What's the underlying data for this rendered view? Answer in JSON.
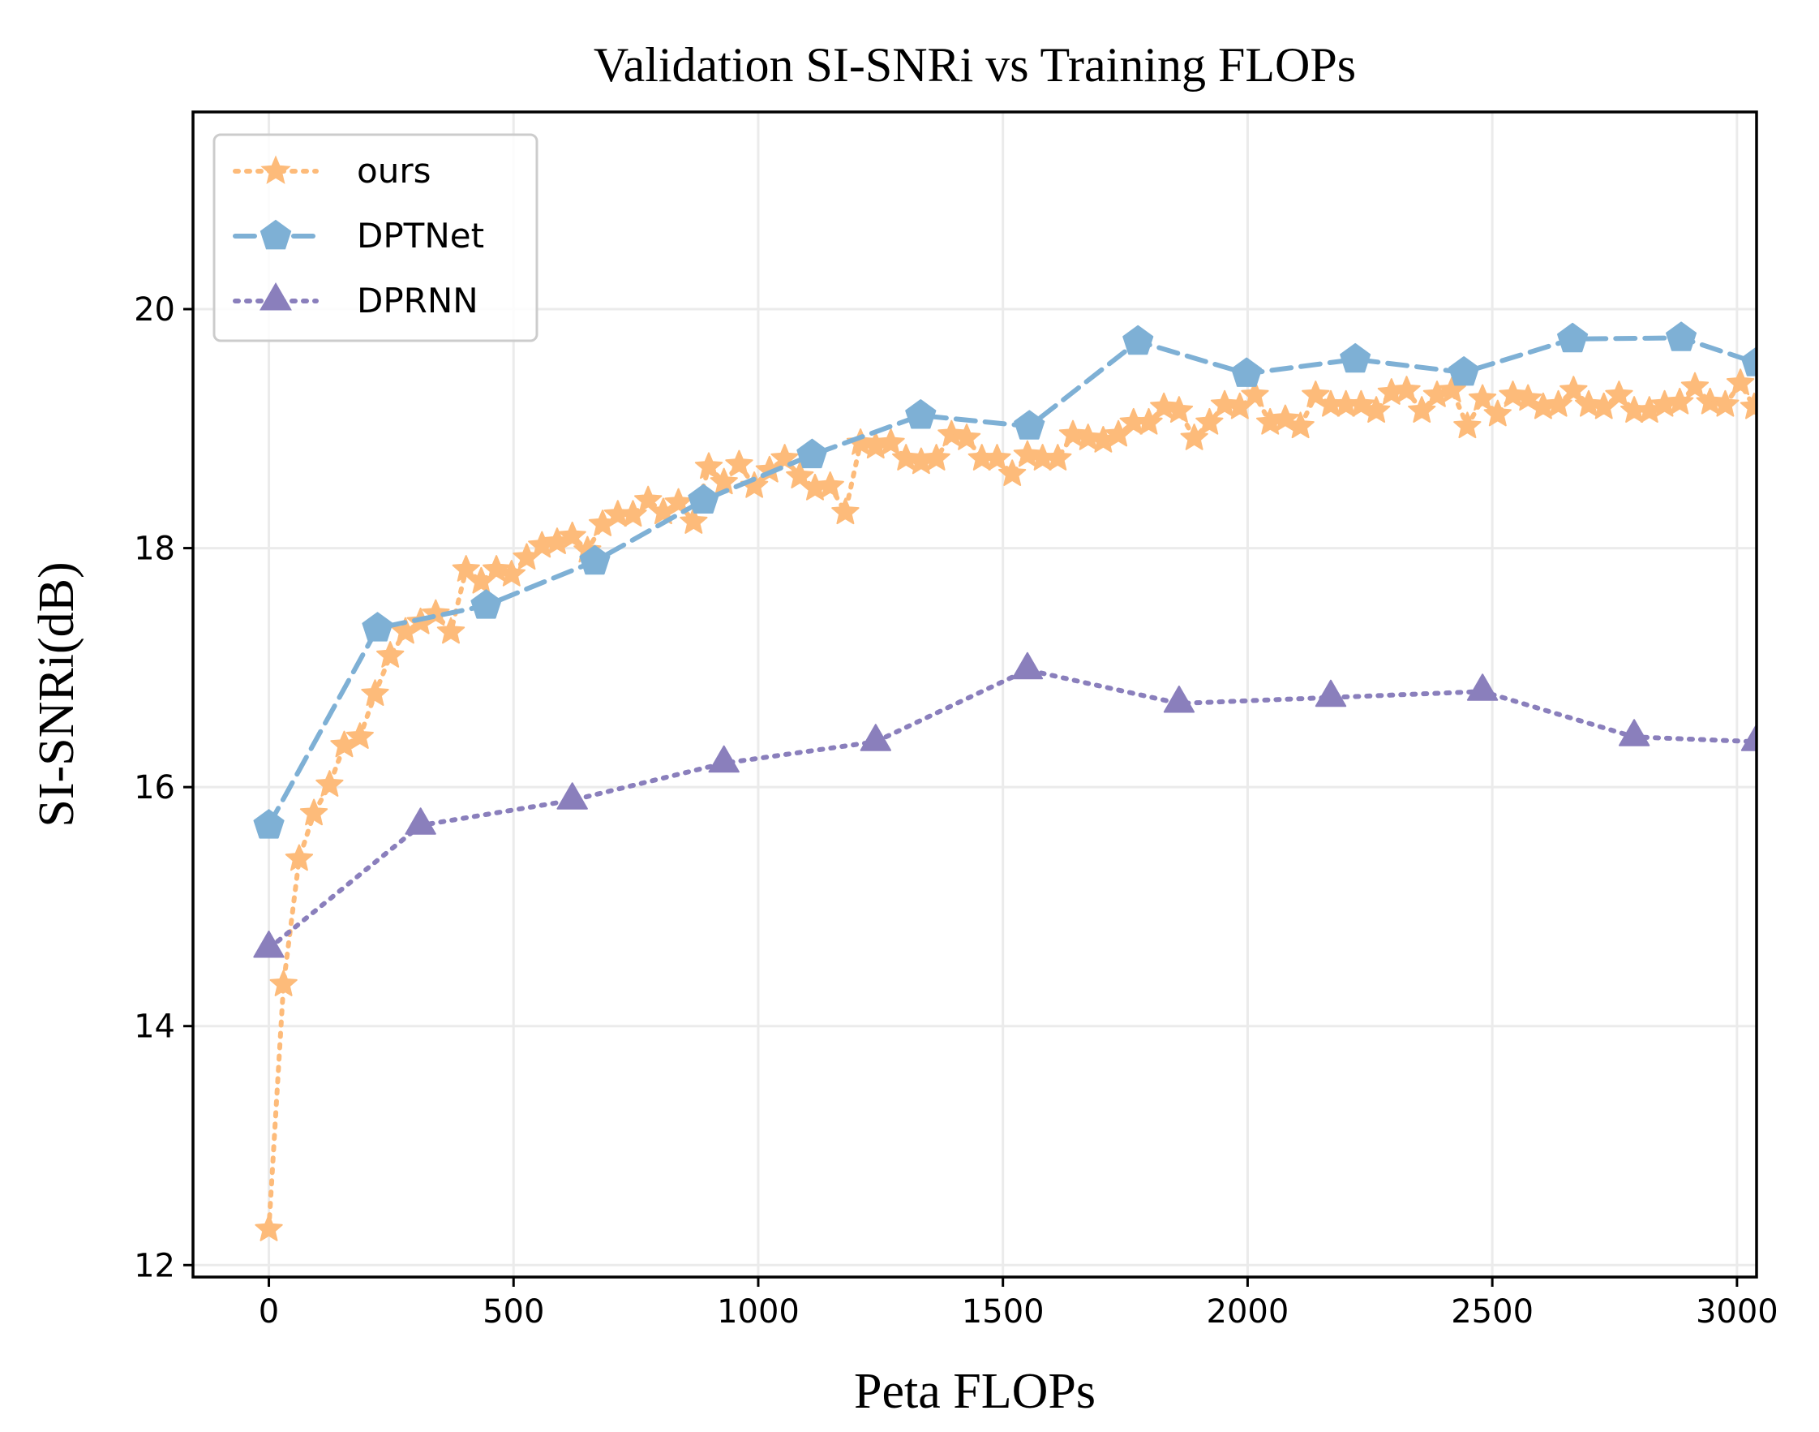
{
  "chart_data": {
    "type": "line",
    "title": "Validation SI-SNRi vs Training FLOPs",
    "xlabel": "Peta FLOPs",
    "ylabel": "SI-SNRi(dB)",
    "xlim": [
      -155,
      3040
    ],
    "ylim": [
      11.9,
      21.65
    ],
    "xticks": [
      0,
      500,
      1000,
      1500,
      2000,
      2500,
      3000
    ],
    "xtick_labels": [
      "0",
      "500",
      "1000",
      "1500",
      "2000",
      "2500",
      "3000"
    ],
    "yticks": [
      12,
      14,
      16,
      18,
      20
    ],
    "ytick_labels": [
      "12",
      "14",
      "16",
      "18",
      "20"
    ],
    "grid": true,
    "legend_position": "upper-left",
    "series": [
      {
        "name": "ours",
        "color": "#fdbb7a",
        "marker": "star",
        "linestyle": "dotted",
        "x": [
          0,
          30,
          62,
          92,
          124,
          154,
          186,
          217,
          248,
          279,
          310,
          341,
          372,
          403,
          434,
          465,
          496,
          527,
          558,
          589,
          620,
          651,
          682,
          713,
          744,
          775,
          806,
          837,
          868,
          899,
          930,
          961,
          992,
          1023,
          1054,
          1085,
          1116,
          1147,
          1178,
          1209,
          1240,
          1271,
          1302,
          1333,
          1364,
          1395,
          1426,
          1457,
          1488,
          1519,
          1550,
          1581,
          1612,
          1643,
          1674,
          1705,
          1736,
          1767,
          1798,
          1829,
          1860,
          1891,
          1922,
          1953,
          1984,
          2015,
          2046,
          2077,
          2108,
          2139,
          2170,
          2201,
          2232,
          2263,
          2294,
          2325,
          2356,
          2387,
          2418,
          2449,
          2480,
          2511,
          2542,
          2573,
          2604,
          2635,
          2666,
          2697,
          2728,
          2759,
          2790,
          2821,
          2852,
          2883,
          2914,
          2945,
          2976,
          3007,
          3035
        ],
        "y": [
          12.3,
          14.35,
          15.4,
          15.78,
          16.02,
          16.35,
          16.42,
          16.78,
          17.1,
          17.3,
          17.38,
          17.45,
          17.3,
          17.82,
          17.72,
          17.82,
          17.78,
          17.92,
          18.02,
          18.05,
          18.1,
          17.98,
          18.2,
          18.28,
          18.28,
          18.4,
          18.3,
          18.38,
          18.22,
          18.68,
          18.55,
          18.7,
          18.52,
          18.65,
          18.75,
          18.6,
          18.5,
          18.52,
          18.3,
          18.88,
          18.85,
          18.88,
          18.75,
          18.72,
          18.75,
          18.95,
          18.92,
          18.75,
          18.75,
          18.62,
          18.78,
          18.75,
          18.75,
          18.95,
          18.92,
          18.9,
          18.95,
          19.05,
          19.05,
          19.18,
          19.15,
          18.92,
          19.05,
          19.2,
          19.18,
          19.28,
          19.05,
          19.08,
          19.02,
          19.28,
          19.2,
          19.2,
          19.2,
          19.15,
          19.3,
          19.32,
          19.15,
          19.28,
          19.32,
          19.02,
          19.25,
          19.12,
          19.28,
          19.25,
          19.18,
          19.2,
          19.32,
          19.2,
          19.18,
          19.28,
          19.15,
          19.15,
          19.2,
          19.22,
          19.35,
          19.22,
          19.2,
          19.38,
          19.18
        ]
      },
      {
        "name": "DPTNet",
        "color": "#7eb0d5",
        "marker": "pentagon",
        "linestyle": "dashed",
        "x": [
          0,
          222,
          444,
          666,
          888,
          1110,
          1332,
          1554,
          1776,
          1998,
          2220,
          2442,
          2664,
          2886,
          3040
        ],
        "y": [
          15.68,
          17.33,
          17.52,
          17.89,
          18.4,
          18.78,
          19.11,
          19.02,
          19.73,
          19.46,
          19.58,
          19.47,
          19.75,
          19.76,
          19.55
        ]
      },
      {
        "name": "DPRNN",
        "color": "#8a7fbc",
        "marker": "triangle",
        "linestyle": "dotted",
        "x": [
          0,
          310,
          620,
          930,
          1240,
          1550,
          1860,
          2170,
          2480,
          2790,
          3040
        ],
        "y": [
          14.65,
          15.68,
          15.89,
          16.2,
          16.38,
          16.98,
          16.7,
          16.75,
          16.8,
          16.42,
          16.38
        ]
      }
    ]
  }
}
